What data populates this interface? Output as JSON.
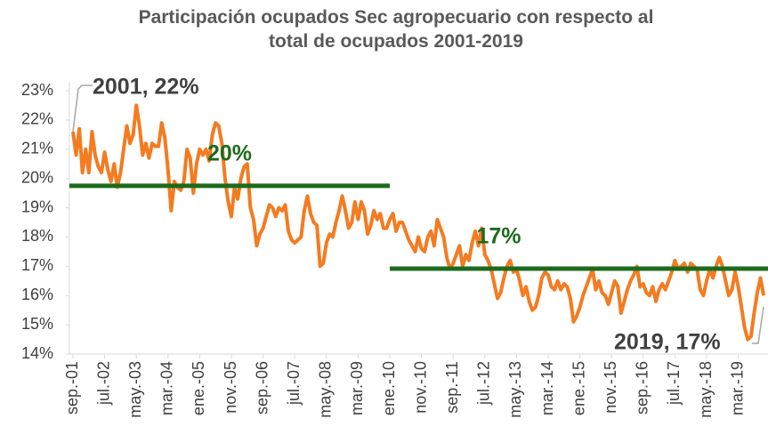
{
  "chart_data": {
    "type": "line",
    "title": "Participación ocupados Sec agropecuario con respecto al total de ocupados 2001-2019",
    "categories": [
      "sep.-01",
      null,
      null,
      null,
      null,
      null,
      null,
      null,
      null,
      null,
      "jul.-02",
      null,
      null,
      null,
      null,
      null,
      null,
      null,
      null,
      null,
      "may.-03",
      null,
      null,
      null,
      null,
      null,
      null,
      null,
      null,
      null,
      "mar.-04",
      null,
      null,
      null,
      null,
      null,
      null,
      null,
      null,
      null,
      "ene.-05",
      null,
      null,
      null,
      null,
      null,
      null,
      null,
      null,
      null,
      "nov.-05",
      null,
      null,
      null,
      null,
      null,
      null,
      null,
      null,
      null,
      "sep.-06",
      null,
      null,
      null,
      null,
      null,
      null,
      null,
      null,
      null,
      "jul.-07",
      null,
      null,
      null,
      null,
      null,
      null,
      null,
      null,
      null,
      "may.-08",
      null,
      null,
      null,
      null,
      null,
      null,
      null,
      null,
      null,
      "mar.-09",
      null,
      null,
      null,
      null,
      null,
      null,
      null,
      null,
      null,
      "ene.-10",
      null,
      null,
      null,
      null,
      null,
      null,
      null,
      null,
      null,
      "nov.-10",
      null,
      null,
      null,
      null,
      null,
      null,
      null,
      null,
      null,
      "sep.-11",
      null,
      null,
      null,
      null,
      null,
      null,
      null,
      null,
      null,
      "jul.-12",
      null,
      null,
      null,
      null,
      null,
      null,
      null,
      null,
      null,
      "may.-13",
      null,
      null,
      null,
      null,
      null,
      null,
      null,
      null,
      null,
      "mar.-14",
      null,
      null,
      null,
      null,
      null,
      null,
      null,
      null,
      null,
      "ene.-15",
      null,
      null,
      null,
      null,
      null,
      null,
      null,
      null,
      null,
      "nov.-15",
      null,
      null,
      null,
      null,
      null,
      null,
      null,
      null,
      null,
      "sep.-16",
      null,
      null,
      null,
      null,
      null,
      null,
      null,
      null,
      null,
      "jul.-17",
      null,
      null,
      null,
      null,
      null,
      null,
      null,
      null,
      null,
      "may.-18",
      null,
      null,
      null,
      null,
      null,
      null,
      null,
      null,
      null,
      "mar.-19",
      null,
      null,
      null,
      null,
      null,
      null,
      null,
      null
    ],
    "series": [
      {
        "color": "#f47b20",
        "values": [
          21.6,
          20.8,
          21.7,
          20.2,
          21.0,
          20.2,
          21.6,
          20.8,
          20.4,
          20.2,
          20.9,
          20.3,
          19.9,
          20.5,
          19.7,
          20.2,
          21.0,
          21.8,
          21.2,
          21.5,
          22.5,
          21.8,
          20.8,
          21.2,
          20.7,
          21.2,
          21.1,
          21.1,
          21.9,
          21.4,
          20.3,
          18.9,
          19.9,
          19.7,
          19.6,
          19.9,
          21.0,
          20.7,
          19.5,
          20.5,
          21.0,
          20.8,
          21.0,
          20.6,
          21.5,
          21.9,
          21.8,
          21.2,
          20.0,
          19.2,
          18.7,
          19.7,
          19.3,
          20.0,
          20.4,
          20.5,
          19.0,
          18.6,
          17.7,
          18.1,
          18.3,
          18.7,
          19.1,
          19.0,
          18.7,
          19.0,
          18.9,
          19.1,
          18.2,
          17.9,
          17.8,
          17.9,
          18.0,
          18.9,
          19.4,
          18.8,
          18.5,
          18.4,
          17.0,
          17.1,
          17.8,
          18.1,
          18.0,
          18.5,
          18.9,
          19.4,
          18.9,
          18.3,
          18.5,
          19.2,
          18.6,
          19.2,
          18.9,
          18.1,
          18.4,
          18.9,
          18.6,
          18.8,
          18.3,
          18.3,
          18.6,
          18.8,
          18.2,
          18.5,
          18.5,
          18.2,
          17.9,
          17.7,
          17.5,
          18.0,
          17.6,
          17.5,
          18.0,
          18.2,
          17.7,
          18.6,
          18.3,
          18.0,
          17.3,
          16.9,
          17.1,
          17.4,
          17.7,
          17.0,
          17.4,
          17.2,
          17.8,
          18.2,
          17.7,
          18.3,
          17.4,
          17.2,
          16.9,
          16.4,
          15.9,
          16.1,
          16.6,
          17.0,
          17.2,
          16.8,
          16.9,
          16.5,
          16.0,
          16.3,
          15.8,
          15.5,
          15.6,
          16.0,
          16.6,
          16.8,
          16.7,
          16.3,
          16.2,
          16.5,
          16.2,
          16.4,
          16.3,
          15.9,
          15.1,
          15.3,
          15.6,
          16.0,
          16.3,
          16.6,
          16.9,
          16.2,
          16.5,
          16.1,
          16.0,
          15.7,
          16.1,
          16.5,
          16.3,
          15.4,
          15.8,
          16.2,
          16.5,
          16.7,
          17.0,
          16.3,
          16.4,
          16.1,
          16.0,
          16.3,
          15.8,
          16.2,
          16.4,
          16.2,
          16.5,
          16.8,
          17.2,
          16.9,
          17.0,
          17.1,
          16.8,
          17.1,
          17.0,
          16.9,
          16.2,
          16.0,
          16.5,
          16.9,
          16.6,
          17.0,
          17.3,
          17.0,
          16.5,
          16.0,
          16.2,
          16.8,
          16.3,
          15.6,
          14.9,
          14.5,
          14.6,
          15.4,
          16.1,
          16.6,
          16.0
        ]
      }
    ],
    "ylim": [
      14,
      23
    ],
    "yticks": [
      {
        "value": 14,
        "label": "14%"
      },
      {
        "value": 15,
        "label": "15%"
      },
      {
        "value": 16,
        "label": "16%"
      },
      {
        "value": 17,
        "label": "17%"
      },
      {
        "value": 18,
        "label": "18%"
      },
      {
        "value": 19,
        "label": "19%"
      },
      {
        "value": 20,
        "label": "20%"
      },
      {
        "value": 21,
        "label": "21%"
      },
      {
        "value": 22,
        "label": "22%"
      },
      {
        "value": 23,
        "label": "23%"
      }
    ],
    "grid": false,
    "reference_lines": [
      {
        "value": 19.75,
        "label": "20%",
        "from": "sep.-01",
        "to": "ene.-10",
        "color": "#1c6b1c"
      },
      {
        "value": 16.92,
        "label": "17%",
        "from": "ene.-10",
        "color": "#1c6b1c"
      }
    ],
    "annotations": [
      "2001, 22%",
      "2019, 17%"
    ]
  }
}
